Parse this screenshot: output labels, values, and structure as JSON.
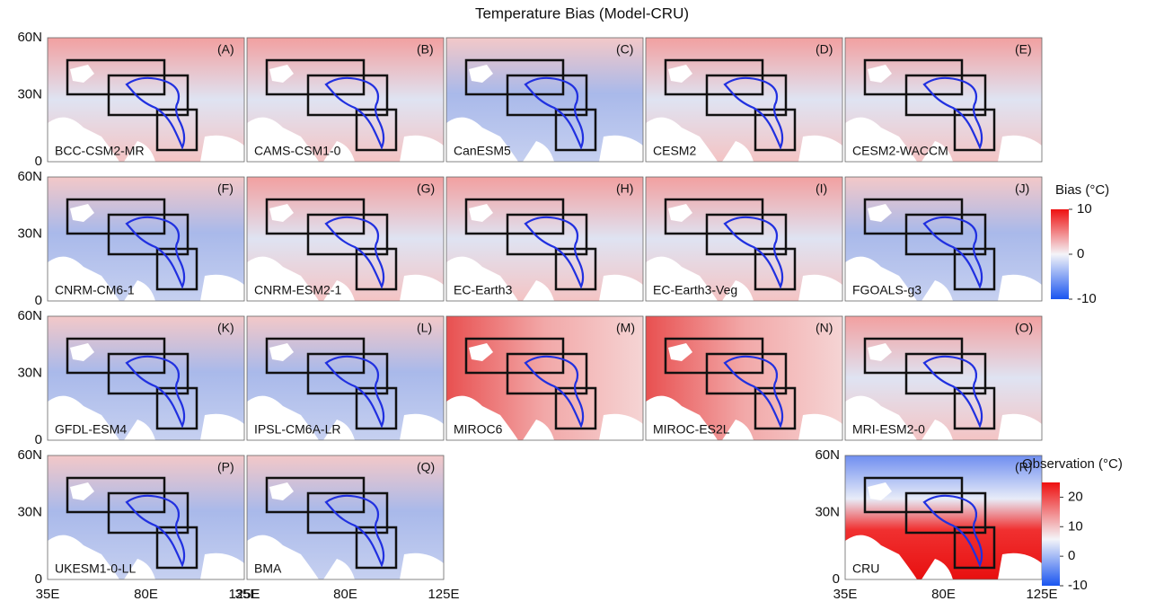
{
  "title": "Temperature Bias (Model-CRU)",
  "y_axis_labels": [
    "60N",
    "30N",
    "0"
  ],
  "x_axis_labels": [
    "35E",
    "80E",
    "125E"
  ],
  "panels": [
    {
      "letter": "(A)",
      "name": "BCC-CSM2-MR"
    },
    {
      "letter": "(B)",
      "name": "CAMS-CSM1-0"
    },
    {
      "letter": "(C)",
      "name": "CanESM5"
    },
    {
      "letter": "(D)",
      "name": "CESM2"
    },
    {
      "letter": "(E)",
      "name": "CESM2-WACCM"
    },
    {
      "letter": "(F)",
      "name": "CNRM-CM6-1"
    },
    {
      "letter": "(G)",
      "name": "CNRM-ESM2-1"
    },
    {
      "letter": "(H)",
      "name": "EC-Earth3"
    },
    {
      "letter": "(I)",
      "name": "EC-Earth3-Veg"
    },
    {
      "letter": "(J)",
      "name": "FGOALS-g3"
    },
    {
      "letter": "(K)",
      "name": "GFDL-ESM4"
    },
    {
      "letter": "(L)",
      "name": "IPSL-CM6A-LR"
    },
    {
      "letter": "(M)",
      "name": "MIROC6"
    },
    {
      "letter": "(N)",
      "name": "MIROC-ES2L"
    },
    {
      "letter": "(O)",
      "name": "MRI-ESM2-0"
    },
    {
      "letter": "(P)",
      "name": "UKESM1-0-LL"
    },
    {
      "letter": "(Q)",
      "name": "BMA"
    },
    {
      "letter": "(R)",
      "name": "CRU"
    }
  ],
  "colorbars": [
    {
      "title": "Bias (°C)",
      "lim": [
        -10,
        10
      ],
      "ticks": [
        10,
        0,
        -10
      ]
    },
    {
      "title": "Observation (°C)",
      "lim": [
        -10,
        25
      ],
      "ticks": [
        20,
        10,
        0,
        -10
      ]
    }
  ]
}
